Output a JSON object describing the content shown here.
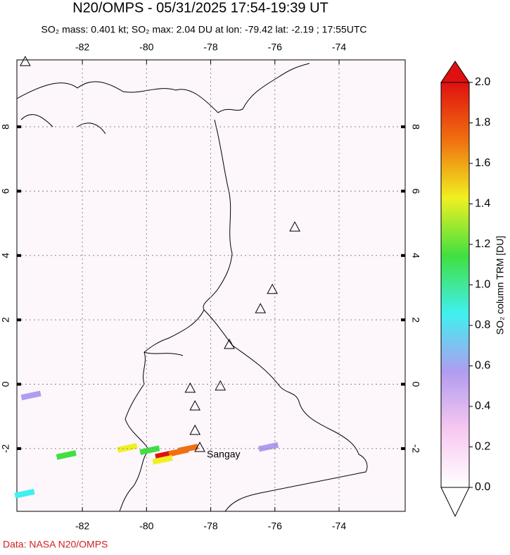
{
  "title": "N20/OMPS - 05/31/2025 17:54-19:39 UT",
  "subtitle": "SO₂ mass: 0.401 kt; SO₂ max: 2.04 DU at lon: -79.42 lat: -2.19 ; 17:55UTC",
  "map": {
    "xlim": [
      -84.04,
      -71.94
    ],
    "ylim": [
      -3.95,
      10.08
    ],
    "xticks": [
      -82,
      -80,
      -78,
      -76,
      -74
    ],
    "yticks": [
      -2,
      0,
      2,
      4,
      6,
      8
    ],
    "grid": true,
    "volcanoes": [
      {
        "lon": -83.78,
        "lat": 10.03
      },
      {
        "lon": -75.38,
        "lat": 4.89
      },
      {
        "lon": -76.08,
        "lat": 2.95
      },
      {
        "lon": -76.45,
        "lat": 2.35
      },
      {
        "lon": -77.42,
        "lat": 1.24
      },
      {
        "lon": -78.64,
        "lat": -0.12
      },
      {
        "lon": -77.7,
        "lat": -0.05
      },
      {
        "lon": -78.49,
        "lat": -0.67
      },
      {
        "lon": -78.49,
        "lat": -1.43
      },
      {
        "lon": -78.34,
        "lat": -1.96
      }
    ],
    "annotation": {
      "text": "Sangay",
      "lon": -77.6,
      "lat": -2.2
    },
    "plume": [
      {
        "lon": -79.42,
        "lat": -2.19,
        "value": 2.04
      },
      {
        "lon": -79.0,
        "lat": -2.1,
        "value": 1.8
      },
      {
        "lon": -78.7,
        "lat": -2.0,
        "value": 1.7
      },
      {
        "lon": -79.5,
        "lat": -2.35,
        "value": 1.4
      },
      {
        "lon": -79.9,
        "lat": -2.05,
        "value": 1.1
      },
      {
        "lon": -80.6,
        "lat": -1.98,
        "value": 1.3
      },
      {
        "lon": -82.5,
        "lat": -2.2,
        "value": 1.1
      },
      {
        "lon": -76.2,
        "lat": -1.95,
        "value": 0.6
      },
      {
        "lon": -83.6,
        "lat": -0.35,
        "value": 0.6
      },
      {
        "lon": -83.8,
        "lat": -3.4,
        "value": 0.8
      }
    ]
  },
  "colorbar": {
    "label": "SO₂ column TRM [DU]",
    "lim": [
      0,
      2
    ],
    "colors": [
      "#ffffff",
      "#f8c8f0",
      "#b09cf0",
      "#40f0f0",
      "#40e040",
      "#f0f020",
      "#f07010",
      "#e01010"
    ],
    "ticks": [
      {
        "value": 0,
        "label": "0.0"
      },
      {
        "value": 0.2,
        "label": "0.2"
      },
      {
        "value": 0.4,
        "label": "0.4"
      },
      {
        "value": 0.6,
        "label": "0.6"
      },
      {
        "value": 0.8,
        "label": "0.8"
      },
      {
        "value": 1,
        "label": "1.0"
      },
      {
        "value": 1.2,
        "label": "1.2"
      },
      {
        "value": 1.4,
        "label": "1.4"
      },
      {
        "value": 1.6,
        "label": "1.6"
      },
      {
        "value": 1.8,
        "label": "1.8"
      },
      {
        "value": 2,
        "label": "2.0"
      }
    ]
  },
  "credit": "Data: NASA N20/OMPS"
}
